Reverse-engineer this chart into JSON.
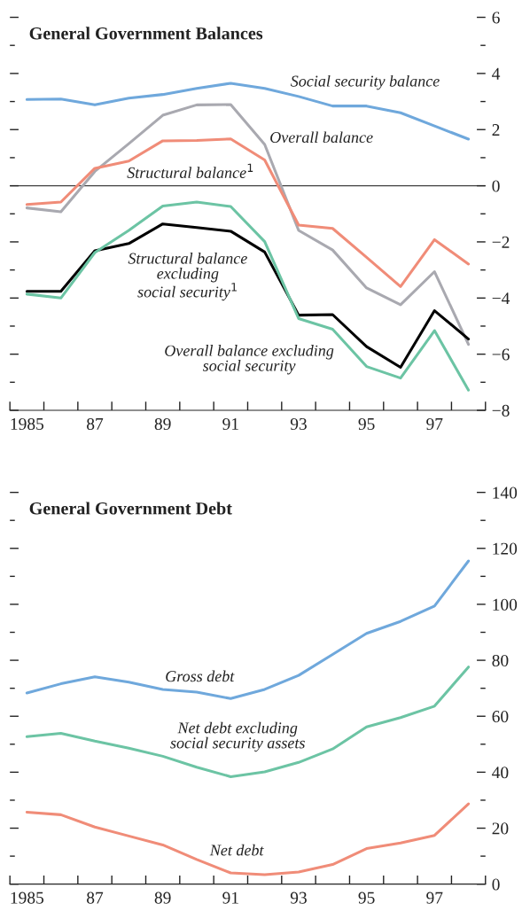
{
  "chart_data": [
    {
      "type": "line",
      "title": "General Government Balances",
      "x": [
        1985,
        1986,
        1987,
        1988,
        1989,
        1990,
        1991,
        1992,
        1993,
        1994,
        1995,
        1996,
        1997,
        1998
      ],
      "series": [
        {
          "name": "Social security balance",
          "color": "#6fa8dc",
          "values": [
            3.07,
            3.09,
            2.88,
            3.12,
            3.25,
            3.47,
            3.65,
            3.47,
            3.18,
            2.84,
            2.84,
            2.6,
            2.13,
            1.66
          ]
        },
        {
          "name": "Overall balance",
          "color": "#a9a9b0",
          "values": [
            -0.79,
            -0.93,
            0.51,
            1.5,
            2.51,
            2.88,
            2.89,
            1.47,
            -1.59,
            -2.29,
            -3.64,
            -4.24,
            -3.06,
            -5.65
          ]
        },
        {
          "name": "Structural balance$^{1}$",
          "color": "#f08c78",
          "values": [
            -0.67,
            -0.58,
            0.62,
            0.88,
            1.6,
            1.61,
            1.67,
            0.92,
            -1.4,
            -1.52,
            -2.55,
            -3.59,
            -1.92,
            -2.79
          ]
        },
        {
          "name": "Structural balance\nexcluding\nsocial security$^{1}$",
          "color": "#000000",
          "values": [
            -3.76,
            -3.76,
            -2.32,
            -2.06,
            -1.36,
            -1.49,
            -1.62,
            -2.36,
            -4.61,
            -4.59,
            -5.73,
            -6.47,
            -4.45,
            -5.46
          ]
        },
        {
          "name": "Overall balance excluding\nsocial security",
          "color": "#6cc4a4",
          "values": [
            -3.86,
            -4.0,
            -2.38,
            -1.59,
            -0.72,
            -0.58,
            -0.74,
            -1.99,
            -4.73,
            -5.11,
            -6.44,
            -6.85,
            -5.16,
            -7.28
          ]
        }
      ],
      "xlim": [
        1984.5,
        1998.5
      ],
      "xticks": [
        {
          "value": 1985,
          "label": "1985"
        },
        {
          "value": 1987,
          "label": "87"
        },
        {
          "value": 1989,
          "label": "89"
        },
        {
          "value": 1991,
          "label": "91"
        },
        {
          "value": 1993,
          "label": "93"
        },
        {
          "value": 1995,
          "label": "95"
        },
        {
          "value": 1997,
          "label": "97"
        },
        {
          "value": 1984.5,
          "label": null
        },
        {
          "value": 1985.5,
          "label": null
        },
        {
          "value": 1986.5,
          "label": null
        },
        {
          "value": 1987.5,
          "label": null
        },
        {
          "value": 1988.5,
          "label": null
        },
        {
          "value": 1989.5,
          "label": null
        },
        {
          "value": 1990.5,
          "label": null
        },
        {
          "value": 1991.5,
          "label": null
        },
        {
          "value": 1992.5,
          "label": null
        },
        {
          "value": 1993.5,
          "label": null
        },
        {
          "value": 1994.5,
          "label": null
        },
        {
          "value": 1995.5,
          "label": null
        },
        {
          "value": 1996.5,
          "label": null
        },
        {
          "value": 1997.5,
          "label": null
        },
        {
          "value": 1998.5,
          "label": null
        }
      ],
      "ylim": [
        -8,
        6
      ],
      "yticks": [
        {
          "value": -8,
          "label": "−8"
        },
        {
          "value": -7,
          "label": null
        },
        {
          "value": -6,
          "label": "−6"
        },
        {
          "value": -5,
          "label": null
        },
        {
          "value": -4,
          "label": "−4"
        },
        {
          "value": -3,
          "label": null
        },
        {
          "value": -2,
          "label": "−2"
        },
        {
          "value": -1,
          "label": null
        },
        0,
        {
          "value": 1,
          "label": null
        },
        2,
        {
          "value": 3,
          "label": null
        },
        4,
        {
          "value": 5,
          "label": null
        },
        6
      ],
      "ref_lines": [
        {
          "axis": "y",
          "value": 0,
          "color": "#404040"
        }
      ],
      "grid": false,
      "legend": false
    },
    {
      "type": "line",
      "title": "General Government Debt",
      "x": [
        1985,
        1986,
        1987,
        1988,
        1989,
        1990,
        1991,
        1992,
        1993,
        1994,
        1995,
        1996,
        1997,
        1998
      ],
      "series": [
        {
          "name": "Gross debt",
          "color": "#6fa8dc",
          "values": [
            68.3,
            71.6,
            74.1,
            72.2,
            69.6,
            68.6,
            66.3,
            69.6,
            74.6,
            82.1,
            89.6,
            93.9,
            99.4,
            115.5
          ]
        },
        {
          "name": "Net debt excluding\nsocial security assets",
          "color": "#6cc4a4",
          "values": [
            52.7,
            53.9,
            51.1,
            48.6,
            45.7,
            41.8,
            38.4,
            40.1,
            43.5,
            48.3,
            56.2,
            59.5,
            63.6,
            77.6
          ]
        },
        {
          "name": "Net debt",
          "color": "#f08c78",
          "values": [
            25.7,
            24.8,
            20.4,
            17.2,
            14.0,
            8.8,
            4.0,
            3.4,
            4.3,
            7.0,
            12.7,
            14.7,
            17.4,
            28.7
          ]
        }
      ],
      "xlim": [
        1984.5,
        1998.5
      ],
      "xticks": [
        {
          "value": 1985,
          "label": "1985"
        },
        {
          "value": 1987,
          "label": "87"
        },
        {
          "value": 1989,
          "label": "89"
        },
        {
          "value": 1991,
          "label": "91"
        },
        {
          "value": 1993,
          "label": "93"
        },
        {
          "value": 1995,
          "label": "95"
        },
        {
          "value": 1997,
          "label": "97"
        },
        {
          "value": 1984.5,
          "label": null
        },
        {
          "value": 1985.5,
          "label": null
        },
        {
          "value": 1986.5,
          "label": null
        },
        {
          "value": 1987.5,
          "label": null
        },
        {
          "value": 1988.5,
          "label": null
        },
        {
          "value": 1989.5,
          "label": null
        },
        {
          "value": 1990.5,
          "label": null
        },
        {
          "value": 1991.5,
          "label": null
        },
        {
          "value": 1992.5,
          "label": null
        },
        {
          "value": 1993.5,
          "label": null
        },
        {
          "value": 1994.5,
          "label": null
        },
        {
          "value": 1995.5,
          "label": null
        },
        {
          "value": 1996.5,
          "label": null
        },
        {
          "value": 1997.5,
          "label": null
        },
        {
          "value": 1998.5,
          "label": null
        }
      ],
      "ylim": [
        0,
        140
      ],
      "yticks": [
        0,
        {
          "value": 10,
          "label": null
        },
        20,
        {
          "value": 30,
          "label": null
        },
        40,
        {
          "value": 50,
          "label": null
        },
        60,
        {
          "value": 70,
          "label": null
        },
        80,
        {
          "value": 90,
          "label": null
        },
        100,
        {
          "value": 110,
          "label": null
        },
        120,
        {
          "value": 130,
          "label": null
        },
        140
      ],
      "grid": false,
      "legend": false
    }
  ]
}
